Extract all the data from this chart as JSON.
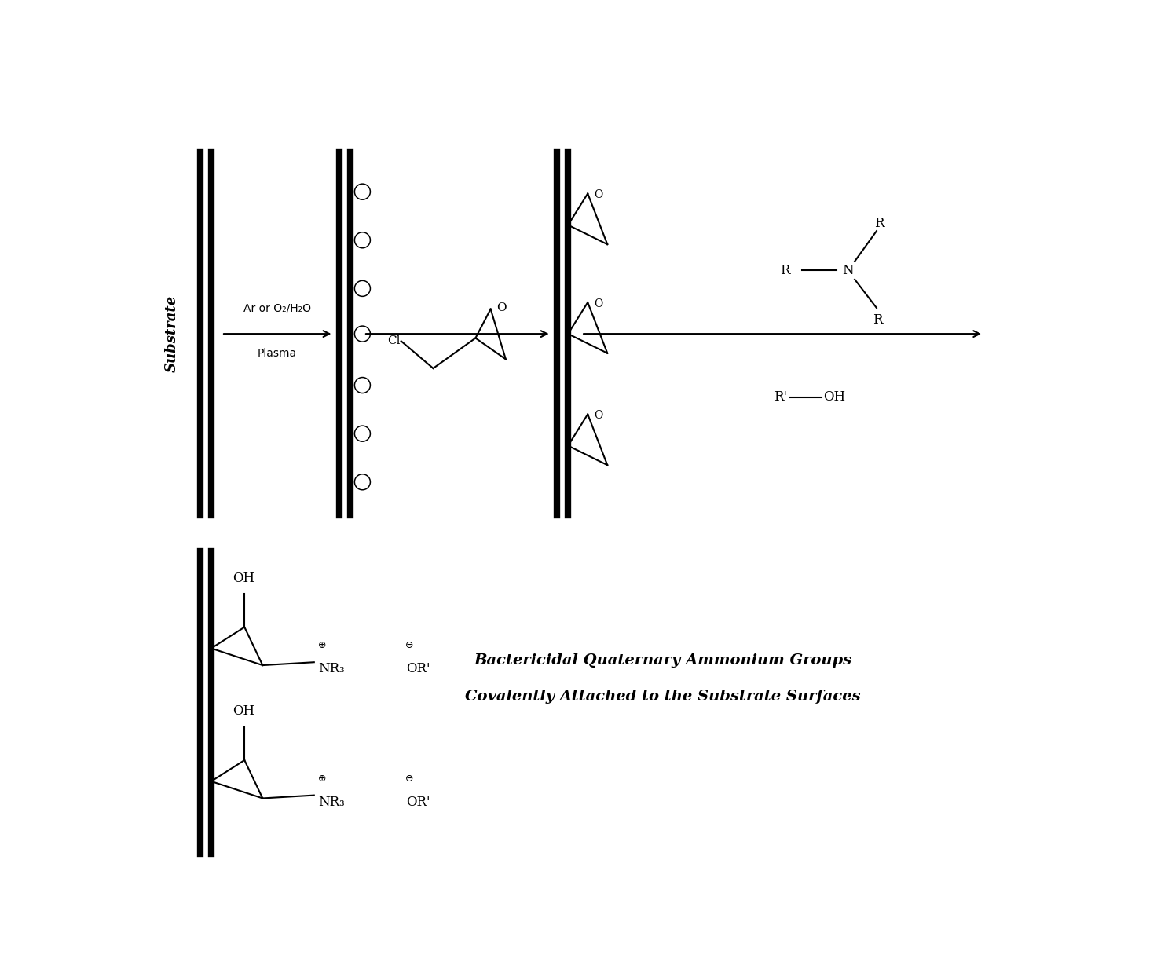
{
  "bg_color": "#ffffff",
  "fig_width": 14.87,
  "fig_height": 12.39,
  "substrate_label": "Substrate",
  "plasma_label1": "Ar or O₂/H₂O",
  "plasma_label2": "Plasma",
  "bactericidal_line1": "Bactericidal Quaternary Ammonium Groups",
  "bactericidal_line2": "Covalently Attached to the Substrate Surfaces",
  "lw_thick": 6,
  "lw_thin": 1.5
}
